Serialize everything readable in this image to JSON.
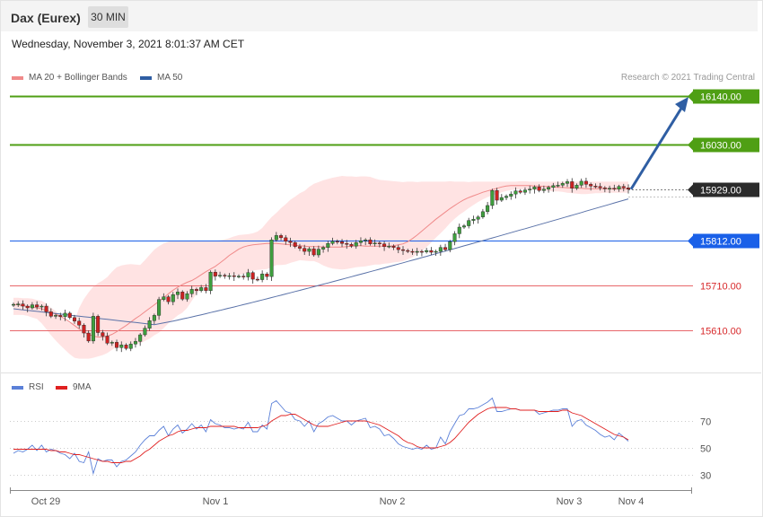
{
  "header": {
    "title": "Dax (Eurex)",
    "timeframe": "30 MIN"
  },
  "datetime": "Wednesday, November 3, 2021 8:01:37 AM CET",
  "legend": {
    "ma20_label": "MA 20 + Bollinger Bands",
    "ma50_label": "MA 50",
    "rsi_label": "RSI",
    "ma9_label": "9MA"
  },
  "copyright": "Research © 2021 Trading Central",
  "colors": {
    "green": "#4f9f14",
    "blue_level": "#1a60e8",
    "red_level": "#e8676a",
    "candle_up": "#3e9e3e",
    "candle_down": "#cc2222",
    "bollinger": "#ffd9d9",
    "ma20": "#f08a8a",
    "ma50": "#5a72a8",
    "arrow": "#2f5ea3",
    "rsi": "#5b80d8",
    "ma9": "#e02020"
  },
  "chart_data": [
    {
      "type": "candlestick",
      "price_levels": [
        {
          "value": "16140.00",
          "kind": "resistance"
        },
        {
          "value": "16030.00",
          "kind": "resistance"
        },
        {
          "value": "15929.00",
          "kind": "last"
        },
        {
          "value": "15812.00",
          "kind": "pivot"
        },
        {
          "value": "15710.00",
          "kind": "support"
        },
        {
          "value": "15610.00",
          "kind": "support"
        }
      ],
      "x_tick_labels": [
        "Oct 29",
        "Nov 1",
        "Nov 2",
        "Nov 3",
        "Nov 4"
      ],
      "close_series": [
        15668,
        15669,
        15664,
        15660,
        15667,
        15662,
        15664,
        15651,
        15641,
        15643,
        15640,
        15648,
        15638,
        15630,
        15621,
        15603,
        15585,
        15641,
        15604,
        15596,
        15580,
        15582,
        15570,
        15576,
        15568,
        15578,
        15584,
        15599,
        15614,
        15631,
        15643,
        15679,
        15685,
        15674,
        15690,
        15696,
        15680,
        15692,
        15702,
        15699,
        15706,
        15699,
        15741,
        15732,
        15734,
        15732,
        15733,
        15731,
        15732,
        15730,
        15740,
        15725,
        15724,
        15737,
        15731,
        15814,
        15824,
        15819,
        15811,
        15808,
        15799,
        15795,
        15788,
        15794,
        15780,
        15793,
        15797,
        15806,
        15811,
        15810,
        15806,
        15804,
        15800,
        15808,
        15812,
        15814,
        15805,
        15807,
        15805,
        15799,
        15800,
        15797,
        15792,
        15790,
        15788,
        15786,
        15788,
        15787,
        15790,
        15786,
        15788,
        15797,
        15792,
        15810,
        15828,
        15843,
        15846,
        15858,
        15861,
        15866,
        15878,
        15892,
        15926,
        15904,
        15910,
        15913,
        15918,
        15925,
        15922,
        15927,
        15929,
        15934,
        15926,
        15929,
        15933,
        15937,
        15938,
        15942,
        15946,
        15931,
        15938,
        15947,
        15940,
        15936,
        15935,
        15932,
        15930,
        15931,
        15929,
        15935,
        15932,
        15929
      ],
      "ma20": [
        15668,
        15667,
        15665,
        15663,
        15662,
        15660,
        15658,
        15654,
        15650,
        15646,
        15641,
        15635,
        15628,
        15620,
        15612,
        15605,
        15600,
        15596,
        15594,
        15594,
        15596,
        15600,
        15606,
        15613,
        15620,
        15628,
        15636,
        15643,
        15651,
        15659,
        15667,
        15675,
        15683,
        15692,
        15700,
        15707,
        15713,
        15718,
        15722,
        15728,
        15735,
        15742,
        15748,
        15754,
        15762,
        15770,
        15779,
        15786,
        15793,
        15798,
        15801,
        15803,
        15804,
        15805,
        15806,
        15806,
        15806,
        15805,
        15804,
        15803,
        15802,
        15801,
        15800,
        15799,
        15799,
        15799,
        15798,
        15798,
        15798,
        15798,
        15798,
        15799,
        15800,
        15801,
        15801,
        15800,
        15800,
        15800,
        15800,
        15800,
        15800,
        15801,
        15803,
        15805,
        15810,
        15817,
        15825,
        15834,
        15843,
        15852,
        15861,
        15869,
        15877,
        15885,
        15892,
        15899,
        15905,
        15910,
        15914,
        15918,
        15922,
        15925,
        15928,
        15931,
        15934,
        15936,
        15937,
        15937,
        15937,
        15937,
        15937,
        15936,
        15936,
        15935,
        15935,
        15934,
        15933,
        15933,
        15932,
        15932,
        15931,
        15931,
        15930,
        15930,
        15930,
        15930,
        15930,
        15930,
        15930,
        15930,
        15930,
        15930
      ],
      "bollinger_upper": [
        15683,
        15683,
        15682,
        15682,
        15681,
        15678,
        15676,
        15670,
        15660,
        15653,
        15640,
        15633,
        15625,
        15630,
        15660,
        15680,
        15695,
        15708,
        15716,
        15722,
        15730,
        15742,
        15752,
        15756,
        15758,
        15759,
        15758,
        15757,
        15768,
        15780,
        15792,
        15800,
        15806,
        15810,
        15812,
        15812,
        15812,
        15812,
        15812,
        15812,
        15812,
        15812,
        15812,
        15812,
        15813,
        15815,
        15818,
        15822,
        15825,
        15826,
        15827,
        15829,
        15833,
        15841,
        15854,
        15866,
        15875,
        15886,
        15895,
        15905,
        15912,
        15920,
        15925,
        15934,
        15941,
        15945,
        15949,
        15952,
        15955,
        15957,
        15959,
        15958,
        15958,
        15957,
        15958,
        15958,
        15957,
        15953,
        15950,
        15949,
        15948,
        15947,
        15946,
        15945,
        15946,
        15946,
        15945,
        15946,
        15946,
        15946,
        15946,
        15946,
        15946,
        15947,
        15946,
        15946,
        15946,
        15945,
        15946,
        15946,
        15946,
        15946,
        15946,
        15946,
        15946,
        15946,
        15946,
        15946,
        15947,
        15947,
        15946,
        15946,
        15946,
        15946,
        15946,
        15946,
        15946,
        15946,
        15946,
        15946,
        15946,
        15946,
        15946,
        15946,
        15946,
        15946,
        15946,
        15946,
        15946,
        15946,
        15946,
        15946
      ],
      "bollinger_lower": [
        15644,
        15644,
        15644,
        15642,
        15638,
        15635,
        15625,
        15612,
        15598,
        15586,
        15575,
        15565,
        15555,
        15547,
        15545,
        15545,
        15545,
        15547,
        15550,
        15553,
        15558,
        15565,
        15572,
        15575,
        15578,
        15578,
        15578,
        15580,
        15585,
        15590,
        15598,
        15604,
        15614,
        15625,
        15634,
        15643,
        15649,
        15660,
        15676,
        15692,
        15704,
        15710,
        15720,
        15731,
        15736,
        15735,
        15734,
        15735,
        15734,
        15737,
        15740,
        15745,
        15746,
        15747,
        15748,
        15752,
        15757,
        15757,
        15758,
        15762,
        15765,
        15768,
        15767,
        15766,
        15766,
        15762,
        15756,
        15752,
        15749,
        15748,
        15747,
        15748,
        15750,
        15752,
        15753,
        15754,
        15756,
        15758,
        15758,
        15760,
        15761,
        15763,
        15764,
        15766,
        15770,
        15775,
        15782,
        15789,
        15798,
        15808,
        15819,
        15829,
        15840,
        15852,
        15862,
        15871,
        15878,
        15886,
        15893,
        15900,
        15906,
        15911,
        15915,
        15918,
        15922,
        15925,
        15927,
        15928,
        15929,
        15929,
        15929,
        15928,
        15927,
        15925,
        15925,
        15924,
        15924,
        15923,
        15921,
        15920,
        15919,
        15918,
        15918,
        15919,
        15920,
        15920,
        15921,
        15921,
        15921,
        15921,
        15921,
        15921,
        15921
      ],
      "ma50_start": 15658,
      "arrow_target": 16140
    },
    {
      "type": "line",
      "y_ticks": [
        70,
        50,
        30
      ],
      "series_names": [
        "RSI",
        "9MA"
      ],
      "rsi": [
        46,
        48,
        47,
        49,
        52,
        48,
        52,
        47,
        49,
        48,
        46,
        45,
        42,
        46,
        40,
        39,
        47,
        31,
        42,
        40,
        41,
        41,
        36,
        40,
        41,
        44,
        47,
        52,
        56,
        59,
        59,
        63,
        66,
        59,
        64,
        67,
        61,
        64,
        68,
        64,
        67,
        62,
        71,
        68,
        67,
        65,
        65,
        64,
        65,
        64,
        69,
        62,
        62,
        67,
        64,
        83,
        85,
        81,
        77,
        76,
        71,
        70,
        66,
        70,
        62,
        68,
        70,
        73,
        74,
        72,
        70,
        70,
        67,
        70,
        71,
        72,
        65,
        66,
        64,
        59,
        60,
        57,
        53,
        51,
        50,
        49,
        50,
        49,
        52,
        49,
        50,
        58,
        53,
        62,
        68,
        74,
        75,
        79,
        79,
        80,
        82,
        84,
        87,
        77,
        77,
        78,
        79,
        79,
        78,
        78,
        78,
        78,
        75,
        76,
        77,
        78,
        78,
        79,
        79,
        66,
        70,
        71,
        67,
        65,
        63,
        60,
        58,
        59,
        56,
        61,
        58,
        55
      ],
      "ma9": [
        49,
        49,
        49,
        49,
        49,
        49,
        49,
        49,
        48,
        48,
        47,
        47,
        46,
        45,
        45,
        44,
        43,
        42,
        41,
        40,
        40,
        39,
        39,
        39,
        40,
        40,
        42,
        44,
        47,
        49,
        52,
        55,
        57,
        59,
        60,
        62,
        63,
        63,
        64,
        65,
        65,
        65,
        66,
        66,
        66,
        66,
        66,
        66,
        65,
        65,
        65,
        65,
        65,
        66,
        67,
        70,
        72,
        74,
        74,
        75,
        75,
        73,
        71,
        69,
        67,
        66,
        66,
        66,
        67,
        68,
        69,
        70,
        70,
        70,
        70,
        70,
        69,
        68,
        67,
        65,
        63,
        61,
        59,
        56,
        54,
        53,
        51,
        50,
        50,
        50,
        50,
        51,
        52,
        54,
        57,
        61,
        65,
        69,
        72,
        75,
        77,
        79,
        80,
        80,
        80,
        80,
        79,
        79,
        78,
        78,
        78,
        78,
        77,
        77,
        77,
        77,
        77,
        78,
        78,
        76,
        75,
        74,
        72,
        70,
        68,
        66,
        64,
        62,
        60,
        59,
        58,
        56
      ]
    }
  ]
}
